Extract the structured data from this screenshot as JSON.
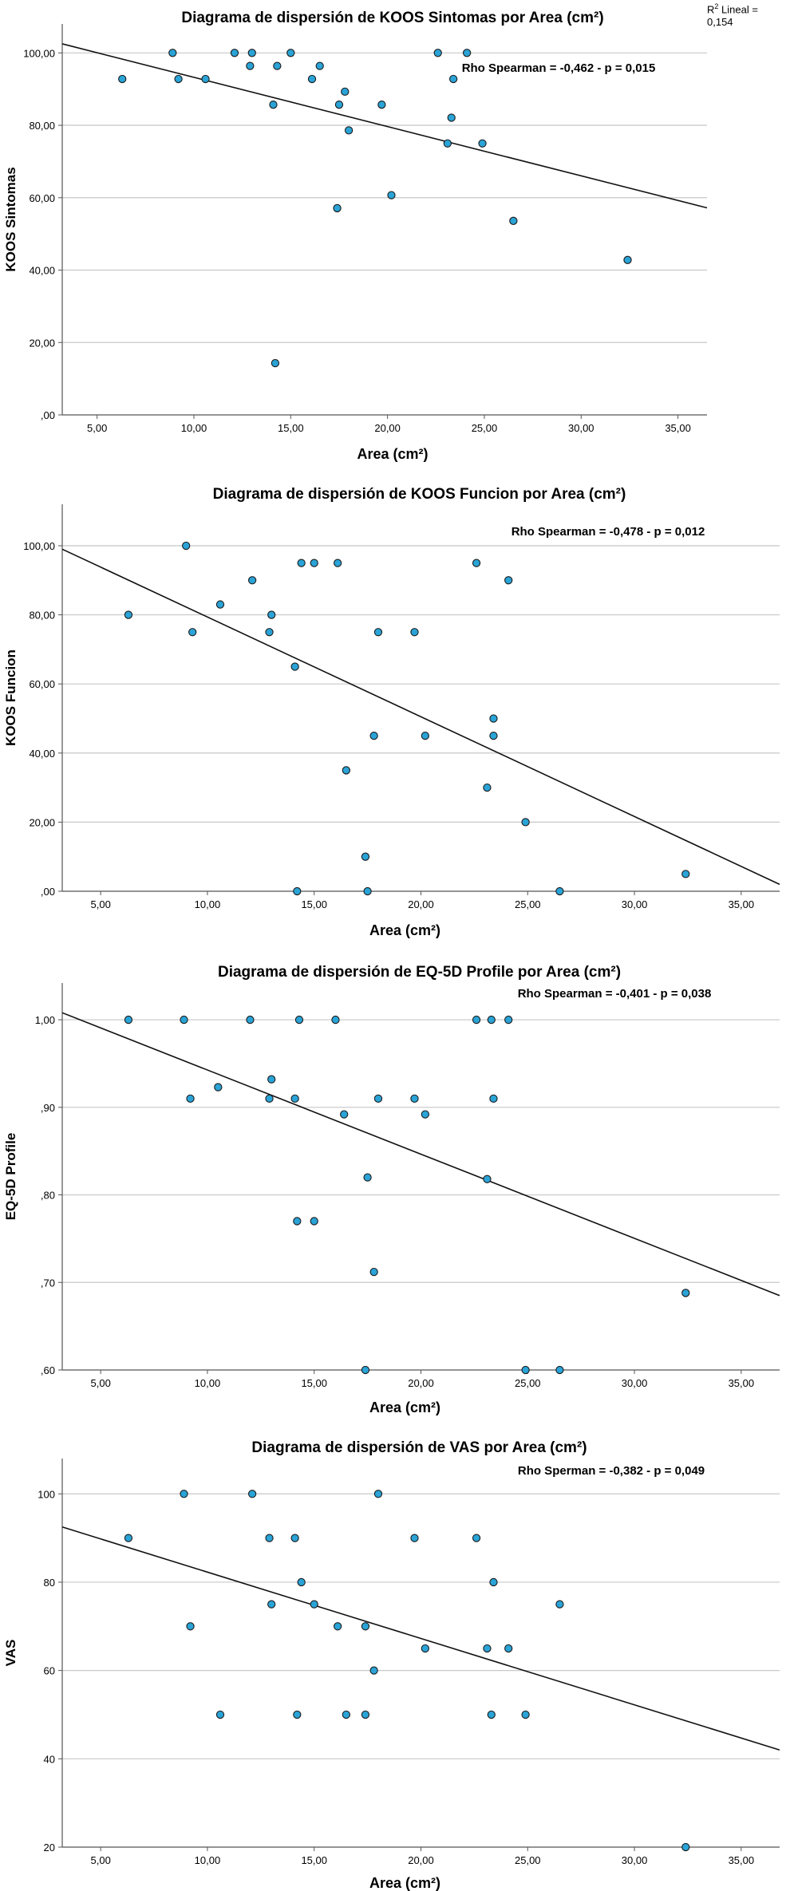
{
  "r2_label": {
    "prefix": "R",
    "sup": "2",
    "suffix": " Lineal = 0,154"
  },
  "chart_data": [
    {
      "type": "scatter",
      "title": "Diagrama de dispersión de KOOS Sintomas por Area (cm²)",
      "xlabel": "Area (cm²)",
      "ylabel": "KOOS Sintomas",
      "annotation": "Rho Spearman = -0,462 - p = 0,015",
      "xlim": [
        3.2,
        36.5
      ],
      "ylim": [
        0,
        108
      ],
      "xticks": [
        5,
        10,
        15,
        20,
        25,
        30,
        35
      ],
      "xtick_labels": [
        "5,00",
        "10,00",
        "15,00",
        "20,00",
        "25,00",
        "30,00",
        "35,00"
      ],
      "yticks": [
        0,
        20,
        40,
        60,
        80,
        100
      ],
      "ytick_labels": [
        ",00",
        "20,00",
        "40,00",
        "60,00",
        "80,00",
        "100,00"
      ],
      "points": [
        [
          6.3,
          92.8
        ],
        [
          8.9,
          100
        ],
        [
          9.2,
          92.8
        ],
        [
          10.6,
          92.8
        ],
        [
          12.1,
          100
        ],
        [
          12.9,
          96.4
        ],
        [
          13.0,
          100
        ],
        [
          14.1,
          85.7
        ],
        [
          14.3,
          96.4
        ],
        [
          14.2,
          14.3
        ],
        [
          15.0,
          100
        ],
        [
          16.1,
          92.8
        ],
        [
          16.5,
          96.4
        ],
        [
          17.4,
          57.1
        ],
        [
          17.5,
          85.7
        ],
        [
          17.8,
          89.3
        ],
        [
          18.0,
          78.6
        ],
        [
          19.7,
          85.7
        ],
        [
          20.2,
          60.7
        ],
        [
          22.6,
          100
        ],
        [
          23.1,
          75.0
        ],
        [
          23.3,
          82.1
        ],
        [
          23.4,
          92.8
        ],
        [
          24.1,
          100
        ],
        [
          24.9,
          75.0
        ],
        [
          26.5,
          53.6
        ],
        [
          32.4,
          42.8
        ]
      ],
      "fit_line": {
        "x": [
          3.2,
          36.5
        ],
        "y": [
          102.5,
          57.2
        ]
      }
    },
    {
      "type": "scatter",
      "title": "Diagrama de dispersión de KOOS Funcion por Area (cm²)",
      "xlabel": "Area (cm²)",
      "ylabel": "KOOS Funcion",
      "annotation": "Rho Spearman = -0,478 - p = 0,012",
      "xlim": [
        3.2,
        36.8
      ],
      "ylim": [
        0,
        112
      ],
      "xticks": [
        5,
        10,
        15,
        20,
        25,
        30,
        35
      ],
      "xtick_labels": [
        "5,00",
        "10,00",
        "15,00",
        "20,00",
        "25,00",
        "30,00",
        "35,00"
      ],
      "yticks": [
        0,
        20,
        40,
        60,
        80,
        100
      ],
      "ytick_labels": [
        ",00",
        "20,00",
        "40,00",
        "60,00",
        "80,00",
        "100,00"
      ],
      "points": [
        [
          6.3,
          80
        ],
        [
          9.0,
          100
        ],
        [
          9.3,
          75
        ],
        [
          10.6,
          83
        ],
        [
          12.1,
          90
        ],
        [
          12.9,
          75
        ],
        [
          13.0,
          80
        ],
        [
          14.1,
          65
        ],
        [
          14.2,
          0
        ],
        [
          14.4,
          95
        ],
        [
          15.0,
          95
        ],
        [
          16.1,
          95
        ],
        [
          16.5,
          35
        ],
        [
          17.4,
          10
        ],
        [
          17.5,
          0
        ],
        [
          17.8,
          45
        ],
        [
          18.0,
          75
        ],
        [
          19.7,
          75
        ],
        [
          20.2,
          45
        ],
        [
          22.6,
          95
        ],
        [
          23.1,
          30
        ],
        [
          23.4,
          50
        ],
        [
          23.4,
          45
        ],
        [
          24.1,
          90
        ],
        [
          24.9,
          20
        ],
        [
          26.5,
          0
        ],
        [
          32.4,
          5
        ]
      ],
      "fit_line": {
        "x": [
          3.2,
          36.8
        ],
        "y": [
          99,
          2
        ]
      }
    },
    {
      "type": "scatter",
      "title": "Diagrama de dispersión de EQ-5D Profile por Area (cm²)",
      "xlabel": "Area (cm²)",
      "ylabel": "EQ-5D Profile",
      "annotation": "Rho Spearman = -0,401 - p = 0,038",
      "xlim": [
        3.2,
        36.8
      ],
      "ylim": [
        0.6,
        1.042
      ],
      "xticks": [
        5,
        10,
        15,
        20,
        25,
        30,
        35
      ],
      "xtick_labels": [
        "5,00",
        "10,00",
        "15,00",
        "20,00",
        "25,00",
        "30,00",
        "35,00"
      ],
      "yticks": [
        0.6,
        0.7,
        0.8,
        0.9,
        1.0
      ],
      "ytick_labels": [
        ",60",
        ",70",
        ",80",
        ",90",
        "1,00"
      ],
      "points": [
        [
          6.3,
          1.0
        ],
        [
          8.9,
          1.0
        ],
        [
          9.2,
          0.91
        ],
        [
          10.5,
          0.923
        ],
        [
          12.0,
          1.0
        ],
        [
          12.9,
          0.91
        ],
        [
          13.0,
          0.932
        ],
        [
          14.1,
          0.91
        ],
        [
          14.2,
          0.77
        ],
        [
          14.3,
          1.0
        ],
        [
          15.0,
          0.77
        ],
        [
          16.0,
          1.0
        ],
        [
          16.4,
          0.892
        ],
        [
          17.5,
          0.82
        ],
        [
          17.4,
          0.6
        ],
        [
          17.8,
          0.712
        ],
        [
          18.0,
          0.91
        ],
        [
          19.7,
          0.91
        ],
        [
          20.2,
          0.892
        ],
        [
          22.6,
          1.0
        ],
        [
          23.1,
          0.818
        ],
        [
          23.3,
          1.0
        ],
        [
          23.4,
          0.91
        ],
        [
          24.1,
          1.0
        ],
        [
          24.9,
          0.6
        ],
        [
          26.5,
          0.6
        ],
        [
          32.4,
          0.688
        ]
      ],
      "fit_line": {
        "x": [
          3.2,
          36.8
        ],
        "y": [
          1.008,
          0.685
        ]
      }
    },
    {
      "type": "scatter",
      "title": "Diagrama de dispersión de VAS por Area (cm²)",
      "xlabel": "Area (cm²)",
      "ylabel": "VAS",
      "annotation": "Rho Sperman = -0,382 - p = 0,049",
      "xlim": [
        3.2,
        36.8
      ],
      "ylim": [
        20,
        108
      ],
      "xticks": [
        5,
        10,
        15,
        20,
        25,
        30,
        35
      ],
      "xtick_labels": [
        "5,00",
        "10,00",
        "15,00",
        "20,00",
        "25,00",
        "30,00",
        "35,00"
      ],
      "yticks": [
        20,
        40,
        60,
        80,
        100
      ],
      "ytick_labels": [
        "20",
        "40",
        "60",
        "80",
        "100"
      ],
      "points": [
        [
          6.3,
          90
        ],
        [
          8.9,
          100
        ],
        [
          9.2,
          70
        ],
        [
          10.6,
          50
        ],
        [
          12.1,
          100
        ],
        [
          12.9,
          90
        ],
        [
          13.0,
          75
        ],
        [
          14.1,
          90
        ],
        [
          14.2,
          50
        ],
        [
          14.4,
          80
        ],
        [
          15.0,
          75
        ],
        [
          16.1,
          70
        ],
        [
          16.5,
          50
        ],
        [
          17.4,
          70
        ],
        [
          17.4,
          50
        ],
        [
          17.8,
          60
        ],
        [
          18.0,
          100
        ],
        [
          19.7,
          90
        ],
        [
          20.2,
          65
        ],
        [
          22.6,
          90
        ],
        [
          23.1,
          65
        ],
        [
          23.4,
          80
        ],
        [
          23.3,
          50
        ],
        [
          24.1,
          65
        ],
        [
          24.9,
          50
        ],
        [
          26.5,
          75
        ],
        [
          32.4,
          20
        ]
      ],
      "fit_line": {
        "x": [
          3.2,
          36.8
        ],
        "y": [
          92.5,
          42
        ]
      }
    }
  ]
}
